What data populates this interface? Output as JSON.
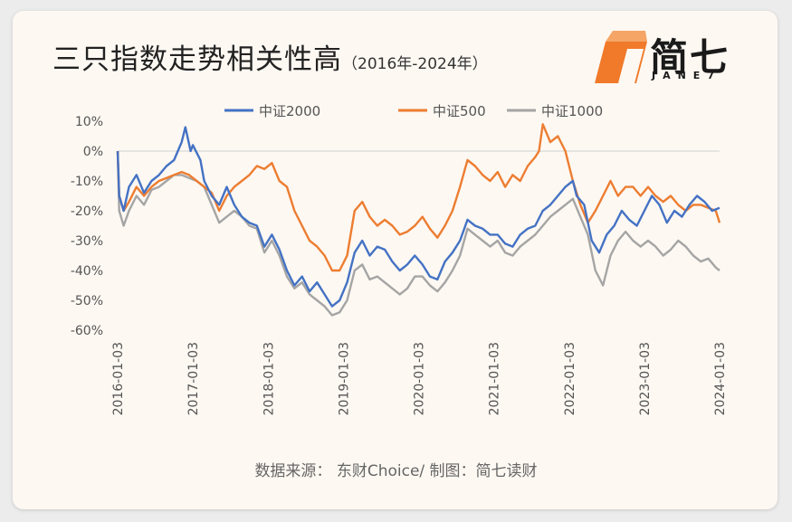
{
  "header": {
    "title": "三只指数走势相关性高",
    "subtitle": "（2016年-2024年）"
  },
  "logo": {
    "text": "简七",
    "sub": "JANE7",
    "accent": "#f07a2a"
  },
  "footer": {
    "source": "数据来源： 东财Choice/ 制图：简七读财"
  },
  "chart_data": {
    "type": "line",
    "ylim": [
      -60,
      10
    ],
    "y_ticks": [
      "10%",
      "0%",
      "-10%",
      "-20%",
      "-30%",
      "-40%",
      "-50%",
      "-60%"
    ],
    "y_tick_values": [
      10,
      0,
      -10,
      -20,
      -30,
      -40,
      -50,
      -60
    ],
    "x_ticks": [
      "2016-01-03",
      "2017-01-03",
      "2018-01-03",
      "2019-01-03",
      "2020-01-03",
      "2021-01-03",
      "2022-01-03",
      "2023-01-03",
      "2024-01-03"
    ],
    "x_tick_years": [
      2016.0,
      2017.0,
      2018.0,
      2019.0,
      2020.0,
      2021.0,
      2022.0,
      2023.0,
      2024.0
    ],
    "xlim": [
      2016.0,
      2024.0
    ],
    "grid": false,
    "legend_position": "top",
    "series": [
      {
        "name": "中证2000",
        "color": "#4472c4",
        "x": [
          2016.0,
          2016.02,
          2016.08,
          2016.15,
          2016.25,
          2016.35,
          2016.45,
          2016.55,
          2016.65,
          2016.75,
          2016.85,
          2016.9,
          2016.97,
          2017.0,
          2017.1,
          2017.15,
          2017.25,
          2017.35,
          2017.45,
          2017.55,
          2017.65,
          2017.75,
          2017.85,
          2017.95,
          2018.05,
          2018.15,
          2018.25,
          2018.35,
          2018.45,
          2018.55,
          2018.65,
          2018.75,
          2018.85,
          2018.95,
          2019.05,
          2019.15,
          2019.25,
          2019.35,
          2019.45,
          2019.55,
          2019.65,
          2019.75,
          2019.85,
          2019.95,
          2020.05,
          2020.15,
          2020.25,
          2020.35,
          2020.45,
          2020.55,
          2020.65,
          2020.75,
          2020.85,
          2020.95,
          2021.05,
          2021.15,
          2021.25,
          2021.35,
          2021.45,
          2021.55,
          2021.65,
          2021.75,
          2021.85,
          2021.95,
          2022.05,
          2022.1,
          2022.2,
          2022.3,
          2022.4,
          2022.5,
          2022.6,
          2022.7,
          2022.8,
          2022.9,
          2023.0,
          2023.1,
          2023.2,
          2023.3,
          2023.4,
          2023.5,
          2023.6,
          2023.7,
          2023.8,
          2023.9,
          2024.0
        ],
        "y": [
          0,
          -15,
          -20,
          -12,
          -8,
          -14,
          -10,
          -8,
          -5,
          -3,
          3,
          8,
          0,
          2,
          -3,
          -10,
          -15,
          -18,
          -12,
          -18,
          -22,
          -24,
          -25,
          -32,
          -28,
          -33,
          -40,
          -45,
          -42,
          -47,
          -44,
          -48,
          -52,
          -50,
          -44,
          -34,
          -30,
          -35,
          -32,
          -33,
          -37,
          -40,
          -38,
          -35,
          -38,
          -42,
          -43,
          -37,
          -34,
          -30,
          -23,
          -25,
          -26,
          -28,
          -28,
          -31,
          -32,
          -28,
          -26,
          -25,
          -20,
          -18,
          -15,
          -12,
          -10,
          -15,
          -18,
          -30,
          -34,
          -28,
          -25,
          -20,
          -23,
          -25,
          -20,
          -15,
          -18,
          -24,
          -20,
          -22,
          -18,
          -15,
          -17,
          -20,
          -19
        ]
      },
      {
        "name": "中证500",
        "color": "#ed7d31",
        "x": [
          2016.0,
          2016.02,
          2016.08,
          2016.15,
          2016.25,
          2016.35,
          2016.45,
          2016.55,
          2016.65,
          2016.75,
          2016.85,
          2016.95,
          2017.05,
          2017.15,
          2017.25,
          2017.35,
          2017.45,
          2017.55,
          2017.65,
          2017.75,
          2017.85,
          2017.95,
          2018.05,
          2018.15,
          2018.25,
          2018.35,
          2018.45,
          2018.55,
          2018.65,
          2018.75,
          2018.85,
          2018.95,
          2019.05,
          2019.15,
          2019.25,
          2019.35,
          2019.45,
          2019.55,
          2019.65,
          2019.75,
          2019.85,
          2019.95,
          2020.05,
          2020.15,
          2020.25,
          2020.35,
          2020.45,
          2020.55,
          2020.65,
          2020.75,
          2020.85,
          2020.95,
          2021.05,
          2021.15,
          2021.25,
          2021.35,
          2021.45,
          2021.55,
          2021.6,
          2021.65,
          2021.75,
          2021.85,
          2021.95,
          2022.05,
          2022.15,
          2022.25,
          2022.35,
          2022.45,
          2022.55,
          2022.65,
          2022.75,
          2022.85,
          2022.95,
          2023.05,
          2023.15,
          2023.25,
          2023.35,
          2023.45,
          2023.55,
          2023.65,
          2023.75,
          2023.85,
          2023.95,
          2024.0
        ],
        "y": [
          0,
          -15,
          -20,
          -17,
          -12,
          -15,
          -12,
          -10,
          -9,
          -8,
          -7,
          -8,
          -10,
          -12,
          -14,
          -20,
          -15,
          -12,
          -10,
          -8,
          -5,
          -6,
          -4,
          -10,
          -12,
          -20,
          -25,
          -30,
          -32,
          -35,
          -40,
          -40,
          -35,
          -20,
          -17,
          -22,
          -25,
          -23,
          -25,
          -28,
          -27,
          -25,
          -22,
          -26,
          -29,
          -25,
          -20,
          -12,
          -3,
          -5,
          -8,
          -10,
          -7,
          -12,
          -8,
          -10,
          -5,
          -2,
          0,
          9,
          3,
          5,
          0,
          -10,
          -18,
          -24,
          -20,
          -15,
          -10,
          -15,
          -12,
          -12,
          -15,
          -12,
          -15,
          -17,
          -15,
          -18,
          -20,
          -18,
          -18,
          -19,
          -20,
          -24
        ]
      },
      {
        "name": "中证1000",
        "color": "#a5a5a5",
        "x": [
          2016.0,
          2016.02,
          2016.08,
          2016.15,
          2016.25,
          2016.35,
          2016.45,
          2016.55,
          2016.65,
          2016.75,
          2016.85,
          2016.95,
          2017.05,
          2017.15,
          2017.25,
          2017.35,
          2017.45,
          2017.55,
          2017.65,
          2017.75,
          2017.85,
          2017.95,
          2018.05,
          2018.15,
          2018.25,
          2018.35,
          2018.45,
          2018.55,
          2018.65,
          2018.75,
          2018.85,
          2018.95,
          2019.05,
          2019.15,
          2019.25,
          2019.35,
          2019.45,
          2019.55,
          2019.65,
          2019.75,
          2019.85,
          2019.95,
          2020.05,
          2020.15,
          2020.25,
          2020.35,
          2020.45,
          2020.55,
          2020.65,
          2020.75,
          2020.85,
          2020.95,
          2021.05,
          2021.15,
          2021.25,
          2021.35,
          2021.45,
          2021.55,
          2021.65,
          2021.75,
          2021.85,
          2021.95,
          2022.05,
          2022.15,
          2022.25,
          2022.35,
          2022.45,
          2022.55,
          2022.65,
          2022.75,
          2022.85,
          2022.95,
          2023.05,
          2023.15,
          2023.25,
          2023.35,
          2023.45,
          2023.55,
          2023.65,
          2023.75,
          2023.85,
          2023.95,
          2024.0
        ],
        "y": [
          0,
          -20,
          -25,
          -20,
          -15,
          -18,
          -13,
          -12,
          -10,
          -8,
          -8,
          -9,
          -10,
          -12,
          -18,
          -24,
          -22,
          -20,
          -22,
          -25,
          -26,
          -34,
          -30,
          -35,
          -42,
          -46,
          -44,
          -48,
          -50,
          -52,
          -55,
          -54,
          -50,
          -40,
          -38,
          -43,
          -42,
          -44,
          -46,
          -48,
          -46,
          -42,
          -42,
          -45,
          -47,
          -44,
          -40,
          -35,
          -26,
          -28,
          -30,
          -32,
          -30,
          -34,
          -35,
          -32,
          -30,
          -28,
          -25,
          -22,
          -20,
          -18,
          -16,
          -22,
          -28,
          -40,
          -45,
          -35,
          -30,
          -27,
          -30,
          -32,
          -30,
          -32,
          -35,
          -33,
          -30,
          -32,
          -35,
          -37,
          -36,
          -39,
          -40
        ]
      }
    ]
  }
}
